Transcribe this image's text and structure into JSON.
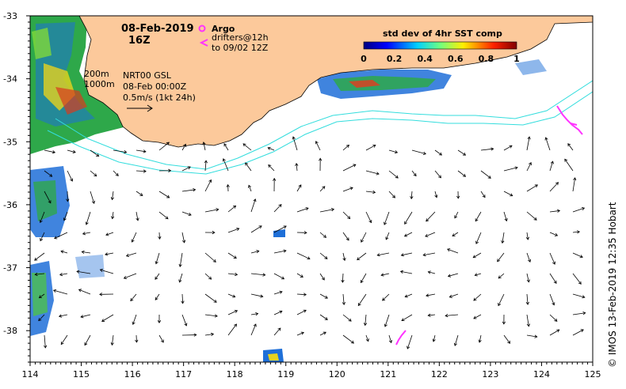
{
  "date_title": "08-Feb-2019",
  "time_title": "16Z",
  "legend": {
    "argo_label": "Argo",
    "drifters_label": "drifters@12h",
    "drifters_to": "to 09/02 12Z",
    "argo_color": "#ff33ff",
    "drifter_color": "#ff33ff"
  },
  "colorbar": {
    "title": "std dev of 4hr SST comp",
    "ticks": [
      "0",
      "0.2",
      "0.4",
      "0.6",
      "0.8",
      "1"
    ],
    "range": [
      0,
      1
    ]
  },
  "isobaths": {
    "label_200": "200m",
    "label_1000": "1000m",
    "color": "#33dddd"
  },
  "product": {
    "line1": "NRT00 GSL",
    "line2": "08-Feb 00:00Z",
    "line3": "0.5m/s (1kt 24h)"
  },
  "axes": {
    "x_ticks": [
      "114",
      "115",
      "116",
      "117",
      "118",
      "119",
      "120",
      "121",
      "122",
      "123",
      "124",
      "125"
    ],
    "y_ticks": [
      "-33",
      "-34",
      "-35",
      "-36",
      "-37",
      "-38"
    ],
    "lon_range": [
      114,
      125
    ],
    "lat_range": [
      -38.5,
      -33
    ]
  },
  "credit": "© IMOS 13-Feb-2019 12:35 Hobart",
  "colors": {
    "land": "#fcc99b",
    "ocean": "#ffffff",
    "arrow": "#000000"
  }
}
